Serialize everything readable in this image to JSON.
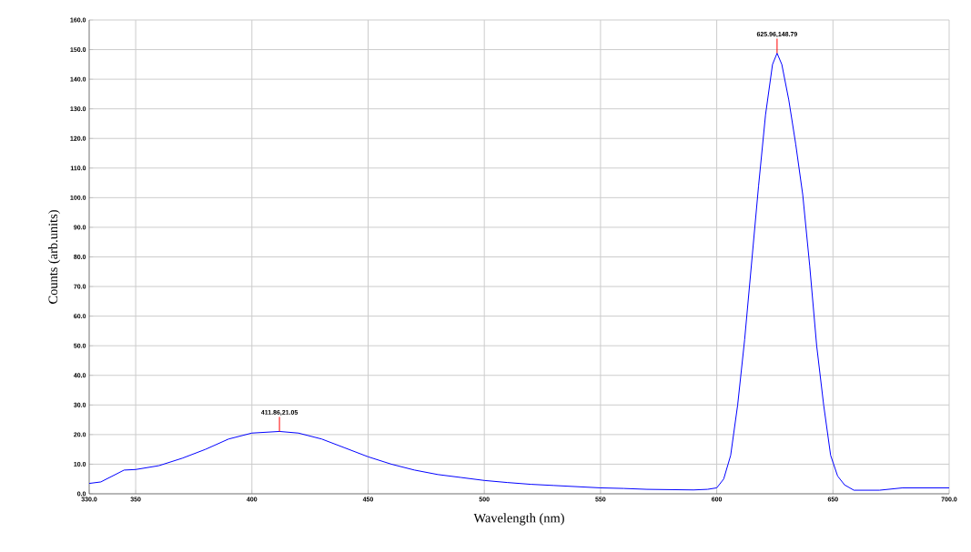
{
  "chart_data": {
    "type": "line",
    "xlabel": "Wavelength (nm)",
    "ylabel": "Counts (arb.units)",
    "x": [
      330,
      335,
      340,
      345,
      350,
      360,
      370,
      380,
      390,
      400,
      411.86,
      420,
      430,
      440,
      450,
      460,
      470,
      480,
      490,
      500,
      510,
      520,
      530,
      540,
      550,
      560,
      570,
      580,
      590,
      596,
      600,
      603,
      606,
      609,
      612,
      615,
      618,
      621,
      624,
      625.96,
      628,
      631,
      634,
      637,
      640,
      643,
      646,
      649,
      652,
      655,
      659,
      670,
      680,
      700
    ],
    "series": [
      {
        "color": "#0000ff",
        "values": [
          3.5,
          4,
          6,
          8,
          8.2,
          9.5,
          12,
          15,
          18.5,
          20.5,
          21.05,
          20.5,
          18.5,
          15.5,
          12.5,
          10,
          8,
          6.5,
          5.5,
          4.5,
          3.8,
          3.2,
          2.8,
          2.4,
          2.0,
          1.8,
          1.5,
          1.4,
          1.3,
          1.5,
          2,
          5,
          13,
          30,
          52,
          78,
          104,
          128,
          145,
          148.79,
          145,
          133,
          118,
          101,
          77,
          50,
          30,
          13,
          6,
          3,
          1.2,
          1.2,
          2,
          2
        ]
      }
    ],
    "annotations": [
      {
        "text": "411.86,21.05",
        "x": 411.86,
        "y": 21.05
      },
      {
        "text": "625.96,148.79",
        "x": 625.96,
        "y": 148.79
      }
    ],
    "xlim": [
      330,
      700
    ],
    "ylim": [
      0,
      160
    ],
    "xticks": [
      {
        "value": 330,
        "label": "330.0"
      },
      350,
      400,
      450,
      500,
      550,
      600,
      650,
      {
        "value": 700,
        "label": "700.0"
      }
    ],
    "yticks": [
      {
        "value": 0,
        "label": "0.0"
      },
      {
        "value": 10,
        "label": "10.0"
      },
      {
        "value": 20,
        "label": "20.0"
      },
      {
        "value": 30,
        "label": "30.0"
      },
      {
        "value": 40,
        "label": "40.0"
      },
      {
        "value": 50,
        "label": "50.0"
      },
      {
        "value": 60,
        "label": "60.0"
      },
      {
        "value": 70,
        "label": "70.0"
      },
      {
        "value": 80,
        "label": "80.0"
      },
      {
        "value": 90,
        "label": "90.0"
      },
      {
        "value": 100,
        "label": "100.0"
      },
      {
        "value": 110,
        "label": "110.0"
      },
      {
        "value": 120,
        "label": "120.0"
      },
      {
        "value": 130,
        "label": "130.0"
      },
      {
        "value": 140,
        "label": "140.0"
      },
      {
        "value": 150,
        "label": "150.0"
      },
      {
        "value": 160,
        "label": "160.0"
      }
    ],
    "grid": true,
    "marker": "none",
    "line_style": "solid"
  }
}
